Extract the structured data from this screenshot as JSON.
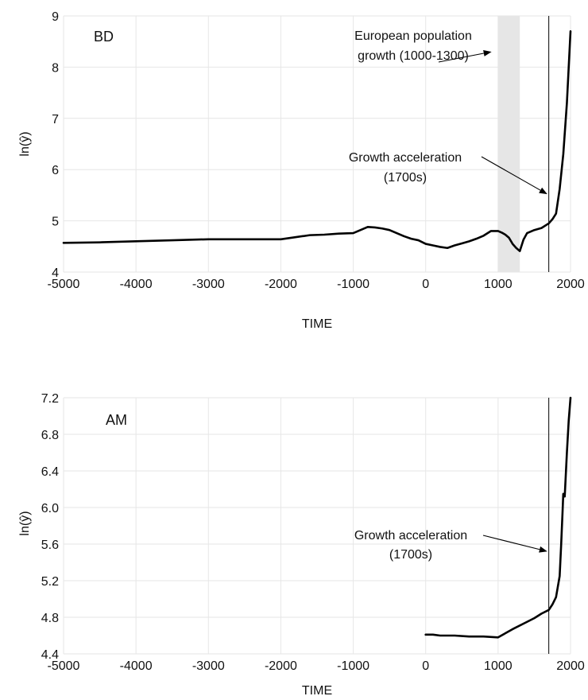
{
  "chart_data": [
    {
      "panel_label": "BD",
      "type": "line",
      "xlabel": "TIME",
      "ylabel": "ln(ŷ)",
      "xlim": [
        -5000,
        2000
      ],
      "ylim": [
        4,
        9
      ],
      "xticks": [
        -5000,
        -4000,
        -3000,
        -2000,
        -1000,
        0,
        1000,
        2000
      ],
      "yticks": [
        4,
        5,
        6,
        7,
        8,
        9
      ],
      "ytick_labels": [
        "4",
        "5",
        "6",
        "7",
        "8",
        "9"
      ],
      "grid": true,
      "series": [
        {
          "x": [
            -5000,
            -4500,
            -4000,
            -3500,
            -3000,
            -2500,
            -2000,
            -1800,
            -1600,
            -1400,
            -1200,
            -1000,
            -900,
            -800,
            -700,
            -600,
            -500,
            -400,
            -300,
            -200,
            -100,
            0,
            100,
            200,
            300,
            400,
            500,
            600,
            700,
            800,
            900,
            1000,
            1050,
            1100,
            1150,
            1200,
            1250,
            1300,
            1350,
            1400,
            1500,
            1600,
            1700,
            1750,
            1800,
            1850,
            1900,
            1950,
            2000
          ],
          "y": [
            4.57,
            4.58,
            4.6,
            4.62,
            4.64,
            4.64,
            4.64,
            4.68,
            4.72,
            4.73,
            4.75,
            4.76,
            4.82,
            4.88,
            4.87,
            4.85,
            4.82,
            4.76,
            4.7,
            4.65,
            4.62,
            4.55,
            4.52,
            4.49,
            4.47,
            4.52,
            4.56,
            4.6,
            4.65,
            4.71,
            4.8,
            4.8,
            4.77,
            4.73,
            4.67,
            4.55,
            4.47,
            4.41,
            4.63,
            4.76,
            4.82,
            4.86,
            4.95,
            5.03,
            5.14,
            5.62,
            6.3,
            7.3,
            8.7
          ]
        }
      ],
      "shaded_regions": [
        {
          "from": 1000,
          "to": 1300
        }
      ],
      "vertical_lines": [
        1700
      ],
      "annotations": [
        {
          "lines": [
            "European population",
            "growth (1000-1300)"
          ],
          "arrow_to": [
            910,
            8.3
          ]
        },
        {
          "lines": [
            "Growth acceleration",
            "(1700s)"
          ],
          "arrow_to": [
            1680,
            5.52
          ]
        }
      ]
    },
    {
      "panel_label": "AM",
      "type": "line",
      "xlabel": "TIME",
      "ylabel": "ln(ŷ)",
      "xlim": [
        -5000,
        2000
      ],
      "ylim": [
        4.4,
        7.2
      ],
      "xticks": [
        -5000,
        -4000,
        -3000,
        -2000,
        -1000,
        0,
        1000,
        2000
      ],
      "yticks": [
        4.4,
        4.8,
        5.2,
        5.6,
        6.0,
        6.4,
        6.8,
        7.2
      ],
      "ytick_labels": [
        "4.4",
        "4.8",
        "5.2",
        "5.6",
        "6.0",
        "6.4",
        "6.8",
        "7.2"
      ],
      "grid": true,
      "series": [
        {
          "x": [
            0,
            100,
            200,
            400,
            600,
            800,
            1000,
            1200,
            1400,
            1500,
            1600,
            1700,
            1750,
            1800,
            1850,
            1870,
            1890,
            1900,
            1920,
            1950,
            1975,
            2000
          ],
          "y": [
            4.61,
            4.61,
            4.6,
            4.6,
            4.59,
            4.59,
            4.58,
            4.67,
            4.75,
            4.79,
            4.84,
            4.88,
            4.94,
            5.02,
            5.25,
            5.58,
            5.95,
            6.15,
            6.12,
            6.6,
            6.95,
            7.2
          ]
        }
      ],
      "shaded_regions": [],
      "vertical_lines": [
        1700
      ],
      "annotations": [
        {
          "lines": [
            "Growth acceleration",
            "(1700s)"
          ],
          "arrow_to": [
            1680,
            5.52
          ]
        }
      ]
    }
  ]
}
